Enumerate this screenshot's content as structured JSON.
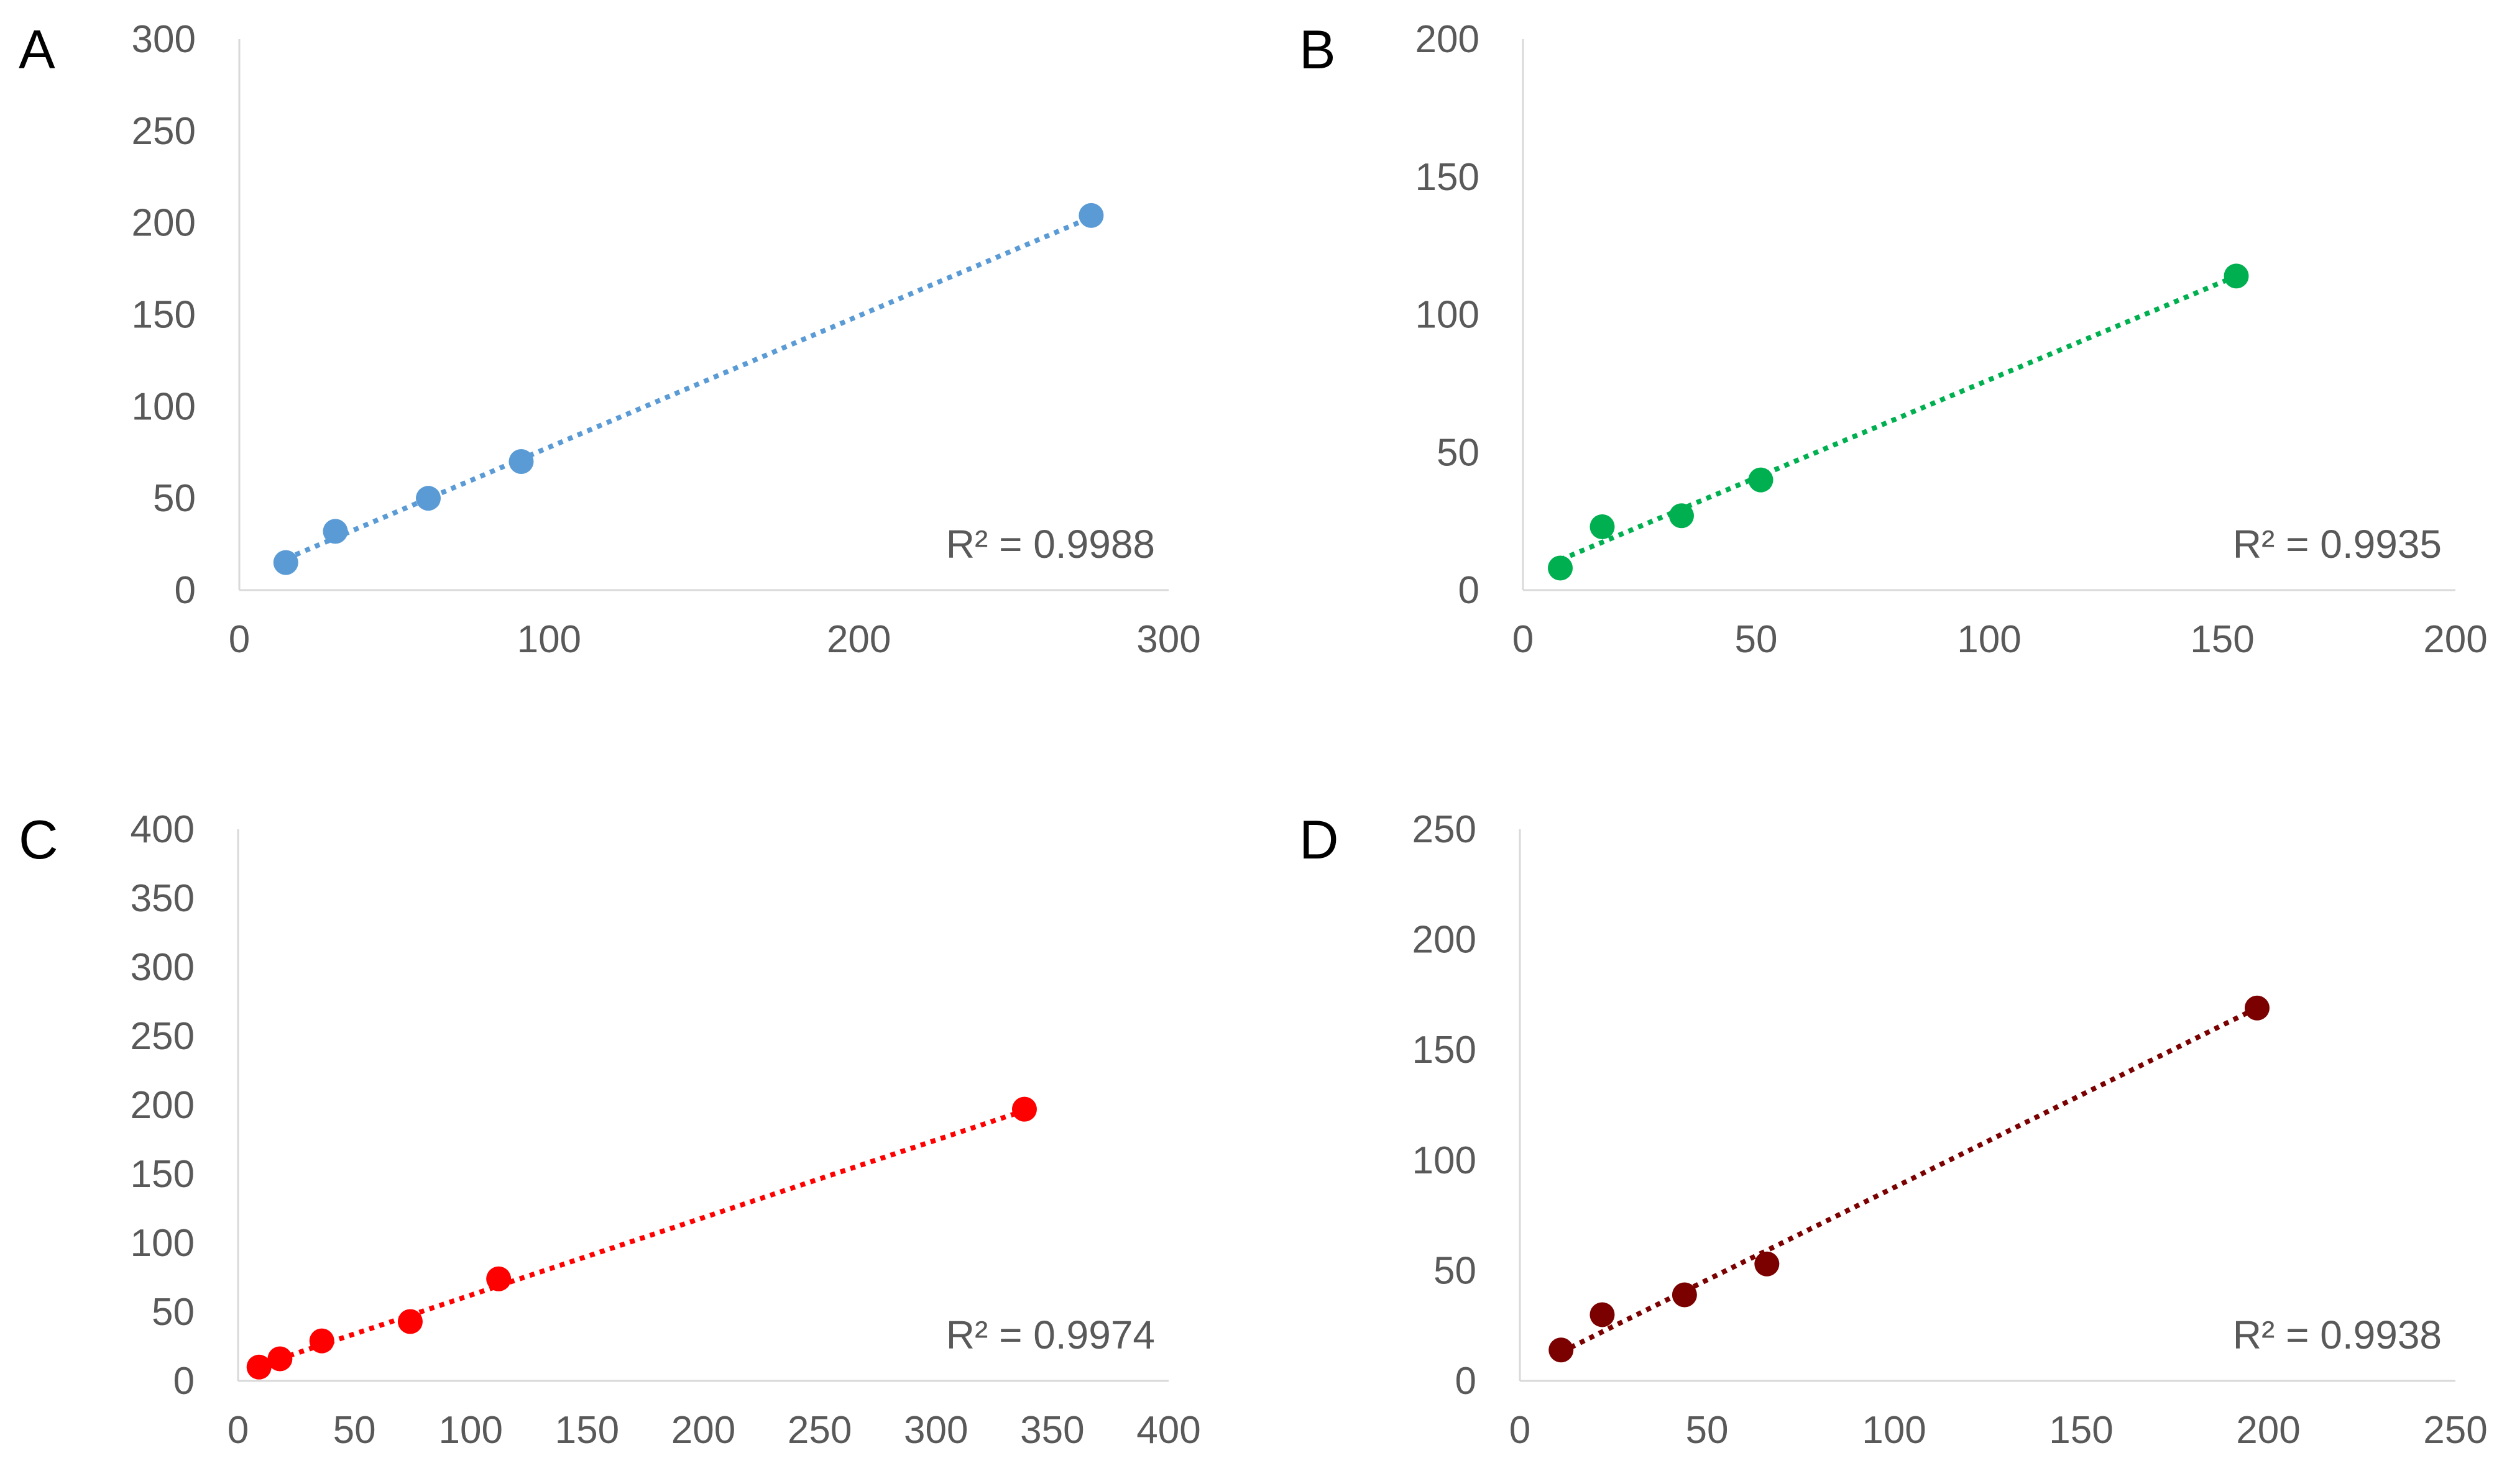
{
  "chart_data": [
    {
      "type": "scatter",
      "panel_label": "A",
      "color": "#5B9BD5",
      "x": [
        15,
        31,
        61,
        91,
        275
      ],
      "y": [
        15,
        32,
        50,
        70,
        204
      ],
      "xlim": [
        0,
        300
      ],
      "ylim": [
        0,
        300
      ],
      "xticks": [
        "0",
        "100",
        "200",
        "300"
      ],
      "yticks": [
        "0",
        "50",
        "100",
        "150",
        "200",
        "250",
        "300"
      ],
      "trendline": {
        "style": "dotted",
        "type": "linear",
        "from": [
          15,
          17
        ],
        "to": [
          275,
          203
        ]
      },
      "r2_label": "R² = 0.9988",
      "title": "",
      "xlabel": "",
      "ylabel": ""
    },
    {
      "type": "scatter",
      "panel_label": "B",
      "color": "#00B050",
      "x": [
        8,
        17,
        34,
        51,
        153
      ],
      "y": [
        8,
        23,
        27,
        40,
        114
      ],
      "xlim": [
        0,
        200
      ],
      "ylim": [
        0,
        200
      ],
      "xticks": [
        "0",
        "50",
        "100",
        "150",
        "200"
      ],
      "yticks": [
        "0",
        "50",
        "100",
        "150",
        "200"
      ],
      "trendline": {
        "style": "dotted",
        "type": "linear",
        "from": [
          8,
          11
        ],
        "to": [
          153,
          114
        ]
      },
      "r2_label": "R² = 0.9935",
      "title": "",
      "xlabel": "",
      "ylabel": ""
    },
    {
      "type": "scatter",
      "panel_label": "C",
      "color": "#FF0000",
      "x": [
        9,
        18,
        36,
        74,
        112,
        338
      ],
      "y": [
        10,
        16,
        29,
        43,
        74,
        197
      ],
      "xlim": [
        0,
        400
      ],
      "ylim": [
        0,
        400
      ],
      "xticks": [
        "0",
        "50",
        "100",
        "150",
        "200",
        "250",
        "300",
        "350",
        "400"
      ],
      "yticks": [
        "0",
        "50",
        "100",
        "150",
        "200",
        "250",
        "300",
        "350",
        "400"
      ],
      "trendline": {
        "style": "dotted",
        "type": "linear",
        "from": [
          9,
          11
        ],
        "to": [
          338,
          196
        ]
      },
      "r2_label": "R² = 0.9974",
      "title": "",
      "xlabel": "",
      "ylabel": ""
    },
    {
      "type": "scatter",
      "panel_label": "D",
      "color": "#7B0000",
      "x": [
        11,
        22,
        44,
        66,
        197
      ],
      "y": [
        14,
        30,
        39,
        53,
        169
      ],
      "xlim": [
        0,
        250
      ],
      "ylim": [
        0,
        250
      ],
      "xticks": [
        "0",
        "50",
        "100",
        "150",
        "200",
        "250"
      ],
      "yticks": [
        "0",
        "50",
        "100",
        "150",
        "200",
        "250"
      ],
      "trendline": {
        "style": "dotted",
        "type": "linear",
        "from": [
          11,
          13
        ],
        "to": [
          197,
          169
        ]
      },
      "r2_label": "R² = 0.9938",
      "title": "",
      "xlabel": "",
      "ylabel": ""
    }
  ]
}
